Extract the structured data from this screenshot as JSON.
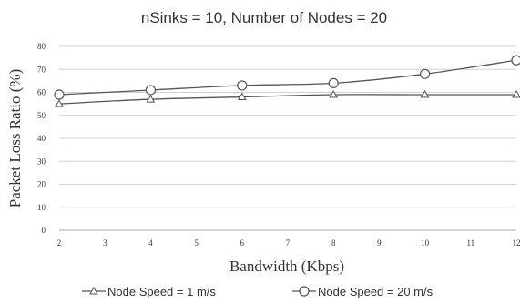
{
  "chart_data": {
    "type": "line",
    "title": "nSinks = 10, Number of Nodes = 20",
    "xlabel": "Bandwidth (Kbps)",
    "ylabel": "Packet Loss Ratio (%)",
    "xlim": [
      2,
      12
    ],
    "ylim": [
      0,
      80
    ],
    "xticks": [
      2,
      3,
      4,
      5,
      6,
      7,
      8,
      9,
      10,
      11,
      12
    ],
    "yticks": [
      0,
      10,
      20,
      30,
      40,
      50,
      60,
      70,
      80
    ],
    "grid": "horizontal",
    "legend_position": "bottom",
    "x": [
      2,
      4,
      6,
      8,
      10,
      12
    ],
    "series": [
      {
        "name": "Node Speed = 1 m/s",
        "marker": "triangle",
        "values": [
          55,
          57,
          58,
          59,
          59,
          59
        ]
      },
      {
        "name": "Node Speed = 20 m/s",
        "marker": "circle",
        "values": [
          59,
          61,
          63,
          64,
          68,
          74
        ]
      }
    ]
  },
  "colors": {
    "line": "#555555",
    "grid": "#d0d0d0",
    "text": "#333333"
  }
}
